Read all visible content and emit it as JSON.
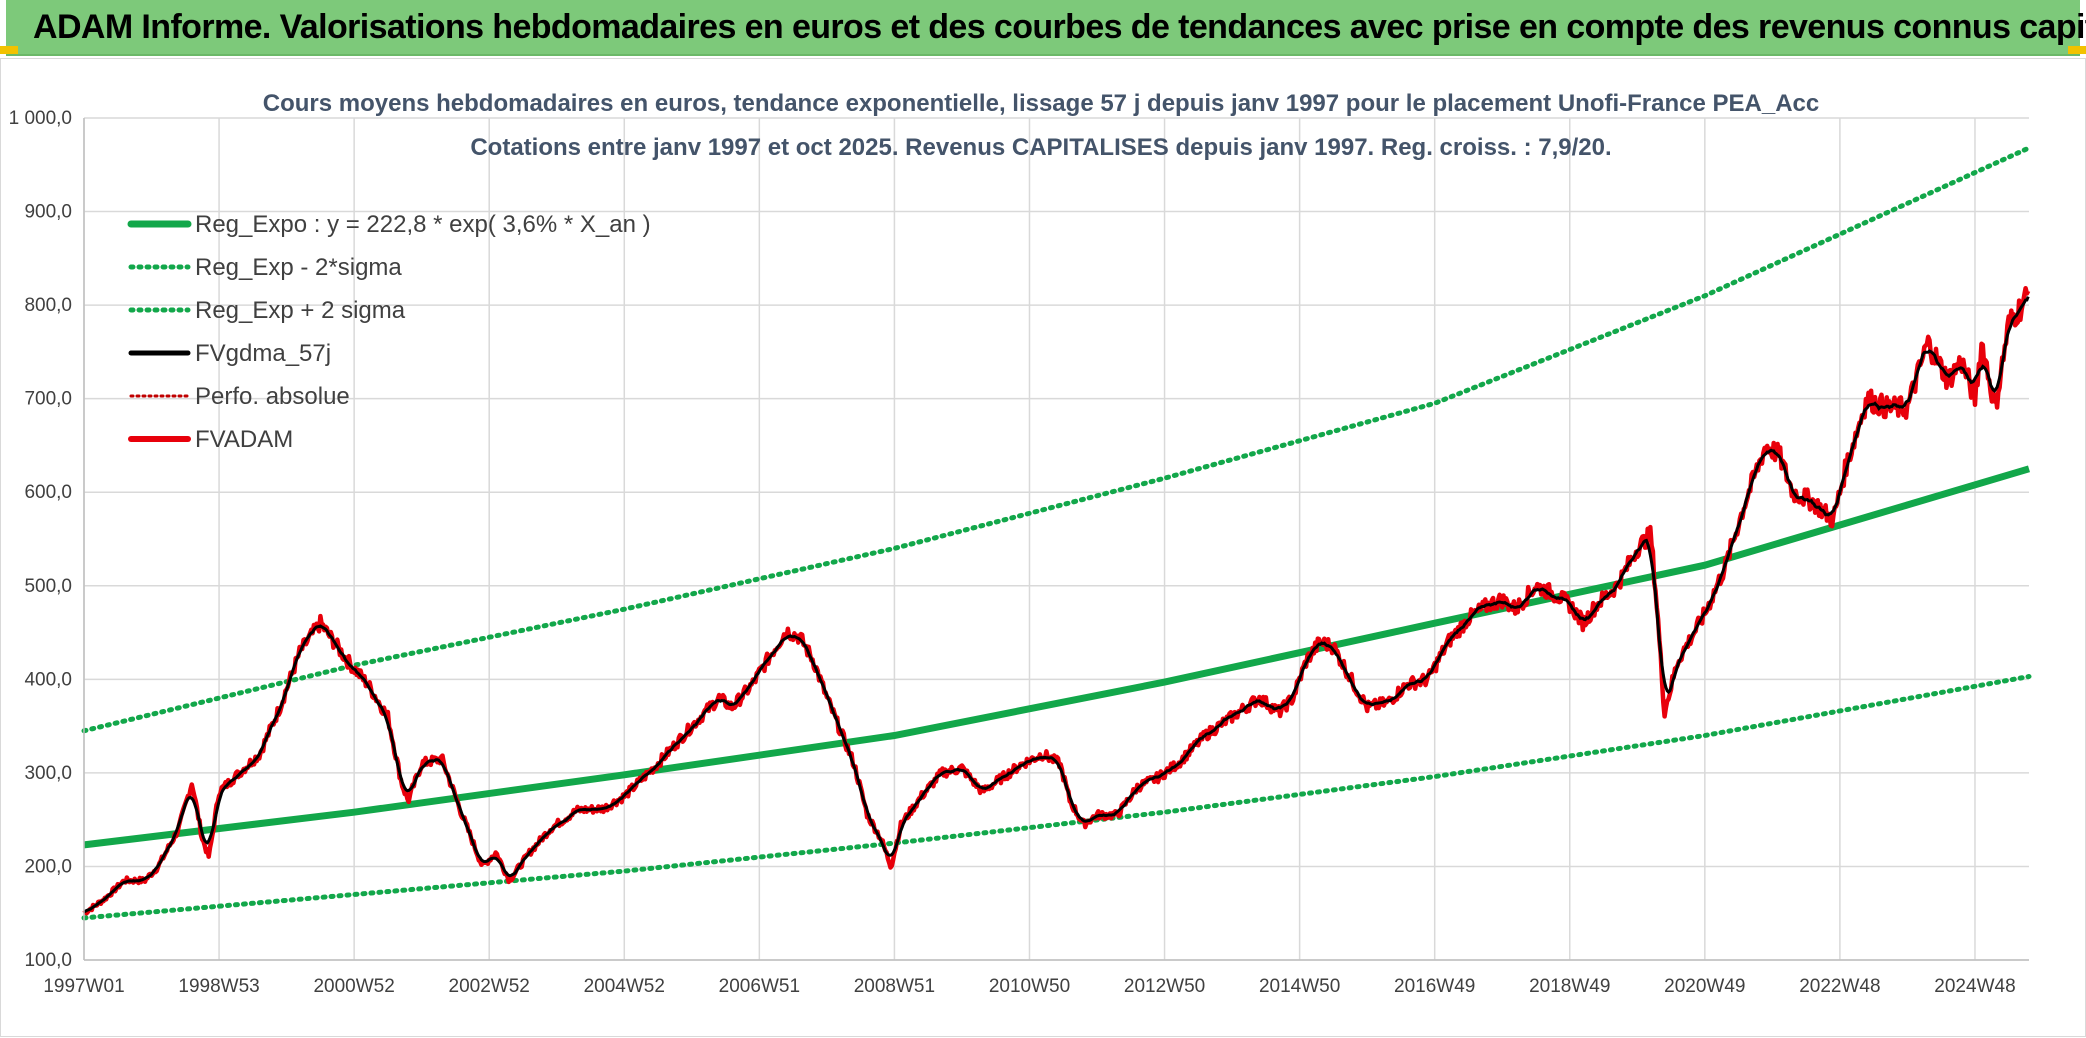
{
  "banner": {
    "title": "ADAM Informe. Valorisations hebdomadaires en euros et des courbes de tendances avec prise en compte des revenus connus capitalisés"
  },
  "colors": {
    "banner_bg": "#7dc97a",
    "regression": "#12a74a",
    "sigma_bands": "#12a74a",
    "smoothed": "#000000",
    "price": "#e8000b",
    "perfo": "#c00000",
    "grid": "#d9d9d9"
  },
  "chart_data": {
    "type": "line",
    "title_lines": [
      "Cours moyens hebdomadaires en euros, tendance exponentielle, lissage 57 j depuis janv 1997 pour le placement Unofi-France PEA_Acc",
      "Cotations entre janv 1997 et oct 2025. Revenus CAPITALISES depuis janv 1997. Reg. croiss. : 7,9/20."
    ],
    "ylim": [
      100,
      1000
    ],
    "y_ticks": [
      "100,0",
      "200,0",
      "300,0",
      "400,0",
      "500,0",
      "600,0",
      "700,0",
      "800,0",
      "900,0",
      "1 000,0"
    ],
    "x_range_years": [
      1997.0,
      2025.8
    ],
    "x_ticks": [
      {
        "label": "1997W01",
        "t": 1997.0
      },
      {
        "label": "1998W53",
        "t": 1999.0
      },
      {
        "label": "2000W52",
        "t": 2001.0
      },
      {
        "label": "2002W52",
        "t": 2003.0
      },
      {
        "label": "2004W52",
        "t": 2005.0
      },
      {
        "label": "2006W51",
        "t": 2007.0
      },
      {
        "label": "2008W51",
        "t": 2009.0
      },
      {
        "label": "2010W50",
        "t": 2011.0
      },
      {
        "label": "2012W50",
        "t": 2013.0
      },
      {
        "label": "2014W50",
        "t": 2015.0
      },
      {
        "label": "2016W49",
        "t": 2017.0
      },
      {
        "label": "2018W49",
        "t": 2019.0
      },
      {
        "label": "2020W49",
        "t": 2021.0
      },
      {
        "label": "2022W48",
        "t": 2023.0
      },
      {
        "label": "2024W48",
        "t": 2025.0
      }
    ],
    "grid": true,
    "legend_position": "top-left",
    "legend": [
      {
        "label": "Reg_Expo : y = 222,8 * exp( 3,6% *  X_an )",
        "series": "reg"
      },
      {
        "label": "Reg_Exp - 2*sigma",
        "series": "lower"
      },
      {
        "label": "Reg_Exp + 2 sigma",
        "series": "upper"
      },
      {
        "label": "FVgdma_57j",
        "series": "smooth"
      },
      {
        "label": "Perfo. absolue",
        "series": "perfo"
      },
      {
        "label": "FVADAM",
        "series": "price"
      }
    ],
    "regression": {
      "a": 222.8,
      "rate": 0.036
    },
    "series": [
      {
        "name": "Reg_Expo",
        "key": "reg",
        "points": [
          [
            1997.0,
            223
          ],
          [
            2001.0,
            258
          ],
          [
            2005.0,
            298
          ],
          [
            2009.0,
            340
          ],
          [
            2013.0,
            397
          ],
          [
            2017.0,
            460
          ],
          [
            2021.0,
            522
          ],
          [
            2025.8,
            625
          ]
        ]
      },
      {
        "name": "Reg_Exp - 2*sigma",
        "key": "lower",
        "points": [
          [
            1997.0,
            145
          ],
          [
            2001.0,
            170
          ],
          [
            2005.0,
            195
          ],
          [
            2009.0,
            225
          ],
          [
            2013.0,
            258
          ],
          [
            2017.0,
            296
          ],
          [
            2021.0,
            340
          ],
          [
            2025.8,
            403
          ]
        ]
      },
      {
        "name": "Reg_Exp + 2 sigma",
        "key": "upper",
        "points": [
          [
            1997.0,
            345
          ],
          [
            2001.0,
            415
          ],
          [
            2005.0,
            475
          ],
          [
            2009.0,
            540
          ],
          [
            2013.0,
            615
          ],
          [
            2017.0,
            695
          ],
          [
            2021.0,
            810
          ],
          [
            2025.8,
            968
          ]
        ]
      },
      {
        "name": "FVADAM",
        "key": "price",
        "points": [
          [
            1997.0,
            150
          ],
          [
            1997.3,
            165
          ],
          [
            1997.6,
            185
          ],
          [
            1997.9,
            185
          ],
          [
            1998.1,
            200
          ],
          [
            1998.4,
            240
          ],
          [
            1998.6,
            290
          ],
          [
            1998.75,
            230
          ],
          [
            1998.85,
            210
          ],
          [
            1999.0,
            280
          ],
          [
            1999.3,
            300
          ],
          [
            1999.6,
            320
          ],
          [
            1999.9,
            370
          ],
          [
            2000.2,
            430
          ],
          [
            2000.5,
            460
          ],
          [
            2000.7,
            440
          ],
          [
            2000.9,
            420
          ],
          [
            2001.2,
            395
          ],
          [
            2001.5,
            360
          ],
          [
            2001.7,
            290
          ],
          [
            2001.8,
            270
          ],
          [
            2002.0,
            310
          ],
          [
            2002.3,
            315
          ],
          [
            2002.6,
            255
          ],
          [
            2002.9,
            200
          ],
          [
            2003.1,
            215
          ],
          [
            2003.3,
            185
          ],
          [
            2003.6,
            215
          ],
          [
            2003.9,
            240
          ],
          [
            2004.3,
            260
          ],
          [
            2004.7,
            262
          ],
          [
            2005.0,
            275
          ],
          [
            2005.5,
            310
          ],
          [
            2006.0,
            350
          ],
          [
            2006.4,
            380
          ],
          [
            2006.6,
            370
          ],
          [
            2006.9,
            395
          ],
          [
            2007.2,
            430
          ],
          [
            2007.4,
            452
          ],
          [
            2007.6,
            445
          ],
          [
            2007.8,
            420
          ],
          [
            2008.0,
            380
          ],
          [
            2008.2,
            345
          ],
          [
            2008.4,
            310
          ],
          [
            2008.6,
            255
          ],
          [
            2008.8,
            230
          ],
          [
            2008.95,
            200
          ],
          [
            2009.1,
            245
          ],
          [
            2009.4,
            275
          ],
          [
            2009.7,
            300
          ],
          [
            2010.0,
            305
          ],
          [
            2010.3,
            280
          ],
          [
            2010.6,
            295
          ],
          [
            2010.9,
            310
          ],
          [
            2011.2,
            320
          ],
          [
            2011.45,
            310
          ],
          [
            2011.6,
            270
          ],
          [
            2011.8,
            245
          ],
          [
            2012.0,
            255
          ],
          [
            2012.3,
            255
          ],
          [
            2012.6,
            285
          ],
          [
            2012.9,
            295
          ],
          [
            2013.2,
            310
          ],
          [
            2013.6,
            340
          ],
          [
            2014.0,
            360
          ],
          [
            2014.4,
            380
          ],
          [
            2014.7,
            365
          ],
          [
            2014.9,
            380
          ],
          [
            2015.1,
            420
          ],
          [
            2015.3,
            440
          ],
          [
            2015.5,
            435
          ],
          [
            2015.8,
            395
          ],
          [
            2016.0,
            370
          ],
          [
            2016.3,
            375
          ],
          [
            2016.6,
            395
          ],
          [
            2016.9,
            400
          ],
          [
            2017.2,
            440
          ],
          [
            2017.5,
            465
          ],
          [
            2017.8,
            480
          ],
          [
            2018.0,
            485
          ],
          [
            2018.2,
            475
          ],
          [
            2018.5,
            500
          ],
          [
            2018.8,
            490
          ],
          [
            2019.0,
            480
          ],
          [
            2019.2,
            460
          ],
          [
            2019.4,
            480
          ],
          [
            2019.7,
            500
          ],
          [
            2020.0,
            540
          ],
          [
            2020.2,
            555
          ],
          [
            2020.3,
            470
          ],
          [
            2020.4,
            365
          ],
          [
            2020.6,
            420
          ],
          [
            2020.8,
            445
          ],
          [
            2021.0,
            470
          ],
          [
            2021.3,
            520
          ],
          [
            2021.6,
            590
          ],
          [
            2021.9,
            650
          ],
          [
            2022.1,
            640
          ],
          [
            2022.3,
            600
          ],
          [
            2022.6,
            590
          ],
          [
            2022.9,
            570
          ],
          [
            2023.1,
            630
          ],
          [
            2023.4,
            700
          ],
          [
            2023.7,
            690
          ],
          [
            2024.0,
            690
          ],
          [
            2024.3,
            760
          ],
          [
            2024.6,
            720
          ],
          [
            2024.8,
            740
          ],
          [
            2025.0,
            700
          ],
          [
            2025.1,
            760
          ],
          [
            2025.3,
            690
          ],
          [
            2025.5,
            780
          ],
          [
            2025.7,
            800
          ],
          [
            2025.8,
            815
          ]
        ]
      }
    ]
  }
}
